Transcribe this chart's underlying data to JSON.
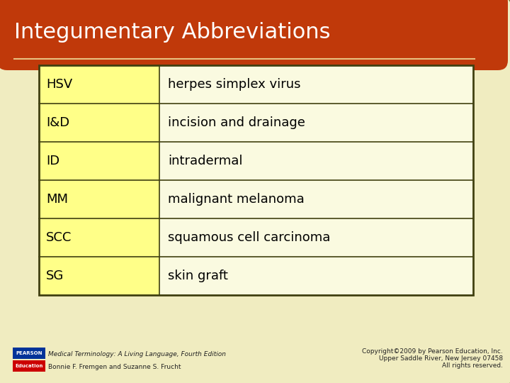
{
  "title": "Integumentary Abbreviations",
  "title_color": "#FFFFFF",
  "title_bg_color": "#C0390A",
  "background_color": "#F0ECC0",
  "table_rows": [
    [
      "HSV",
      "herpes simplex virus"
    ],
    [
      "I&D",
      "incision and drainage"
    ],
    [
      "ID",
      "intradermal"
    ],
    [
      "MM",
      "malignant melanoma"
    ],
    [
      "SCC",
      "squamous cell carcinoma"
    ],
    [
      "SG",
      "skin graft"
    ]
  ],
  "abbrev_bg_color": "#FFFF88",
  "def_bg_color": "#FAFAE0",
  "border_color": "#404010",
  "table_text_color": "#000000",
  "footer_left_line1": "Medical Terminology: A Living Language, Fourth Edition",
  "footer_left_line2": "Bonnie F. Fremgen and Suzanne S. Frucht",
  "footer_right_line1": "Copyright©2009 by Pearson Education, Inc.",
  "footer_right_line2": "Upper Saddle River, New Jersey 07458",
  "footer_right_line3": "All rights reserved.",
  "footer_text_color": "#222222",
  "scroll_border_color": "#7A7830",
  "pearson_box_color1": "#003399",
  "pearson_box_color2": "#CC0000",
  "title_line_color": "#E8C080",
  "fig_width": 7.2,
  "fig_height": 5.4,
  "dpi": 100
}
